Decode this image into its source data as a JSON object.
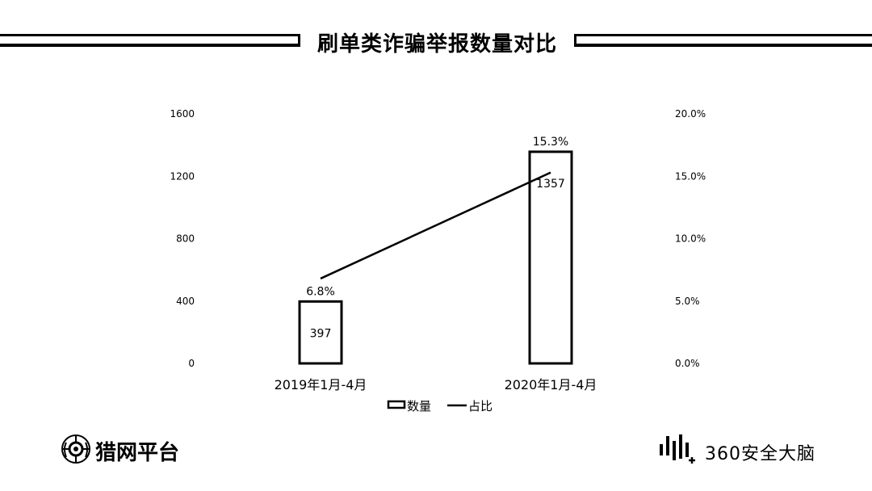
{
  "chart_data": {
    "type": "bar",
    "title": "刷单类诈骗举报数量对比",
    "categories": [
      "2019年1月-4月",
      "2020年1月-4月"
    ],
    "series": [
      {
        "name": "数量",
        "kind": "bar",
        "axis": "left",
        "values": [
          397,
          1357
        ],
        "labels": [
          "397",
          "1357"
        ]
      },
      {
        "name": "占比",
        "kind": "line",
        "axis": "right",
        "values": [
          6.8,
          15.3
        ],
        "labels": [
          "6.8%",
          "15.3%"
        ]
      }
    ],
    "y_left": {
      "min": 0,
      "max": 1600,
      "ticks": [
        "0",
        "400",
        "800",
        "1200",
        "1600"
      ]
    },
    "y_right": {
      "min": 0,
      "max": 20,
      "ticks": [
        "0.0%",
        "5.0%",
        "10.0%",
        "15.0%",
        "20.0%"
      ]
    },
    "legend_position": "bottom",
    "grid": false
  },
  "logos": {
    "left_text": "猎网平台",
    "right_text": "360安全大脑"
  }
}
